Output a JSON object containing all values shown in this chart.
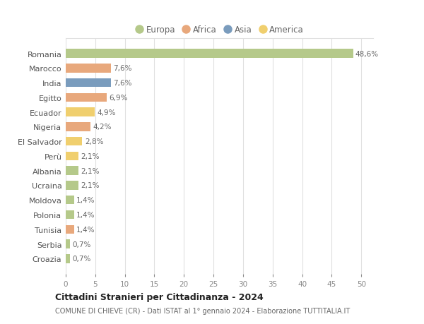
{
  "countries": [
    "Romania",
    "Marocco",
    "India",
    "Egitto",
    "Ecuador",
    "Nigeria",
    "El Salvador",
    "Perù",
    "Albania",
    "Ucraina",
    "Moldova",
    "Polonia",
    "Tunisia",
    "Serbia",
    "Croazia"
  ],
  "values": [
    48.6,
    7.6,
    7.6,
    6.9,
    4.9,
    4.2,
    2.8,
    2.1,
    2.1,
    2.1,
    1.4,
    1.4,
    1.4,
    0.7,
    0.7
  ],
  "labels": [
    "48,6%",
    "7,6%",
    "7,6%",
    "6,9%",
    "4,9%",
    "4,2%",
    "2,8%",
    "2,1%",
    "2,1%",
    "2,1%",
    "1,4%",
    "1,4%",
    "1,4%",
    "0,7%",
    "0,7%"
  ],
  "continents": [
    "Europa",
    "Africa",
    "Asia",
    "Africa",
    "America",
    "Africa",
    "America",
    "America",
    "Europa",
    "Europa",
    "Europa",
    "Europa",
    "Africa",
    "Europa",
    "Europa"
  ],
  "colors": {
    "Europa": "#b5c98a",
    "Africa": "#e8a87c",
    "Asia": "#7a9cbd",
    "America": "#f0cf6e"
  },
  "legend_order": [
    "Europa",
    "Africa",
    "Asia",
    "America"
  ],
  "title": "Cittadini Stranieri per Cittadinanza - 2024",
  "subtitle": "COMUNE DI CHIEVE (CR) - Dati ISTAT al 1° gennaio 2024 - Elaborazione TUTTITALIA.IT",
  "xlim": [
    0,
    52
  ],
  "xticks": [
    0,
    5,
    10,
    15,
    20,
    25,
    30,
    35,
    40,
    45,
    50
  ],
  "background_color": "#ffffff",
  "grid_color": "#e0e0e0",
  "bar_height": 0.6
}
